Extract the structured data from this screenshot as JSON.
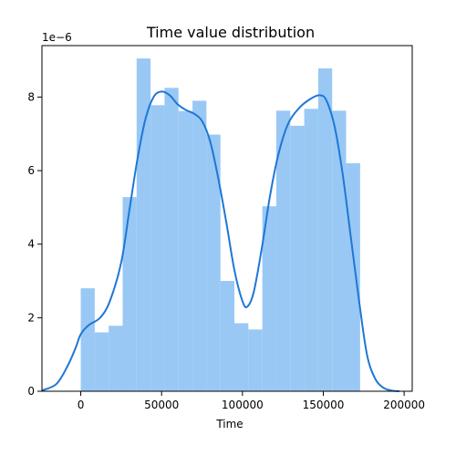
{
  "chart_data": {
    "type": "histogram",
    "title": "Time value distribution",
    "xlabel": "Time",
    "ylabel": "",
    "y_offset_label": "1e−6",
    "y_scale": 1e-06,
    "xlim": [
      -24000,
      205000
    ],
    "ylim": [
      0,
      9.4
    ],
    "x_ticks": [
      0,
      50000,
      100000,
      150000,
      200000
    ],
    "x_tick_labels": [
      "0",
      "50000",
      "100000",
      "150000",
      "200000"
    ],
    "y_ticks": [
      0,
      2,
      4,
      6,
      8
    ],
    "y_tick_labels": [
      "0",
      "2",
      "4",
      "6",
      "8"
    ],
    "grid": false,
    "bin_edges": [
      0,
      8638,
      17276,
      25915,
      34553,
      43191,
      51829,
      60468,
      69106,
      77744,
      86382,
      95021,
      103659,
      112297,
      120935,
      129574,
      138212,
      146850,
      155488,
      164127,
      172765
    ],
    "bin_heights": [
      2.8,
      1.6,
      1.78,
      5.28,
      9.05,
      7.78,
      8.25,
      7.62,
      7.9,
      6.98,
      3.0,
      1.85,
      1.68,
      5.03,
      7.63,
      7.22,
      7.68,
      8.78,
      7.63,
      6.2
    ],
    "kde": {
      "x": [
        -24000,
        -15000,
        -8000,
        -3000,
        0,
        5000,
        12000,
        18000,
        25000,
        30000,
        35000,
        40000,
        45000,
        50000,
        55000,
        60000,
        65000,
        70000,
        75000,
        80000,
        85000,
        90000,
        95000,
        100000,
        103000,
        107000,
        112000,
        117000,
        122000,
        128000,
        135000,
        142000,
        148000,
        152000,
        157000,
        162000,
        167000,
        172000,
        177000,
        182000,
        187000,
        192000,
        197000
      ],
      "y": [
        0.02,
        0.2,
        0.7,
        1.2,
        1.55,
        1.8,
        2.0,
        2.45,
        3.5,
        4.9,
        6.3,
        7.4,
        8.0,
        8.15,
        8.05,
        7.8,
        7.65,
        7.55,
        7.35,
        6.8,
        5.8,
        4.6,
        3.3,
        2.45,
        2.3,
        2.7,
        3.9,
        5.3,
        6.4,
        7.25,
        7.7,
        7.95,
        8.05,
        7.9,
        7.2,
        5.9,
        4.2,
        2.5,
        1.0,
        0.35,
        0.1,
        0.02,
        0.0
      ]
    },
    "colors": {
      "bars": "#99c8f5",
      "kde_line": "#1f77d4",
      "axes": "#000000"
    }
  }
}
